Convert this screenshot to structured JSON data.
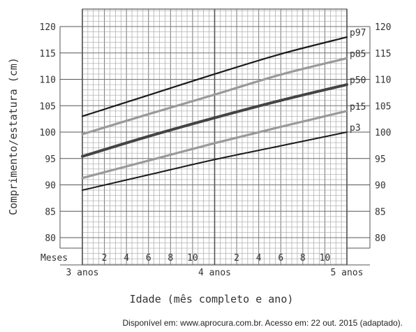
{
  "chart_data": {
    "type": "line",
    "title": "",
    "ylabel": "Comprimento/estatura (cm)",
    "xlabel": "Idade (mês completo e ano)",
    "ylim": [
      80,
      120
    ],
    "yticks": [
      80,
      85,
      90,
      95,
      100,
      105,
      110,
      115,
      120
    ],
    "xlim": [
      0,
      24
    ],
    "x_row_label": "Meses",
    "month_ticks": [
      {
        "x": 2,
        "label": "2"
      },
      {
        "x": 4,
        "label": "4"
      },
      {
        "x": 6,
        "label": "6"
      },
      {
        "x": 8,
        "label": "8"
      },
      {
        "x": 10,
        "label": "10"
      },
      {
        "x": 14,
        "label": "2"
      },
      {
        "x": 16,
        "label": "4"
      },
      {
        "x": 18,
        "label": "6"
      },
      {
        "x": 20,
        "label": "8"
      },
      {
        "x": 22,
        "label": "10"
      }
    ],
    "year_labels": [
      {
        "x": 0,
        "label": "3 anos"
      },
      {
        "x": 12,
        "label": "4 anos"
      },
      {
        "x": 24,
        "label": "5 anos"
      }
    ],
    "grid": true,
    "series": [
      {
        "name": "p97",
        "color": "#1a1a1a",
        "width": 2.2,
        "x": [
          0,
          6,
          12,
          18,
          24
        ],
        "values": [
          103,
          107,
          111,
          114.8,
          118
        ]
      },
      {
        "name": "p85",
        "color": "#9a9a9a",
        "width": 3.2,
        "x": [
          0,
          6,
          12,
          18,
          24
        ],
        "values": [
          99.6,
          103.4,
          107.1,
          110.9,
          114
        ]
      },
      {
        "name": "p50",
        "color": "#444444",
        "width": 4,
        "x": [
          0,
          6,
          12,
          18,
          24
        ],
        "values": [
          95.4,
          99.2,
          102.7,
          106,
          109
        ]
      },
      {
        "name": "p15",
        "color": "#9a9a9a",
        "width": 3.2,
        "x": [
          0,
          6,
          12,
          18,
          24
        ],
        "values": [
          91.3,
          94.6,
          97.9,
          101,
          104
        ]
      },
      {
        "name": "p3",
        "color": "#1a1a1a",
        "width": 2,
        "x": [
          0,
          6,
          12,
          18,
          24
        ],
        "values": [
          89,
          91.9,
          94.8,
          97.4,
          100
        ]
      }
    ]
  },
  "source": "Disponível em: www.aprocura.com.br. Acesso em: 22 out. 2015 (adaptado)."
}
